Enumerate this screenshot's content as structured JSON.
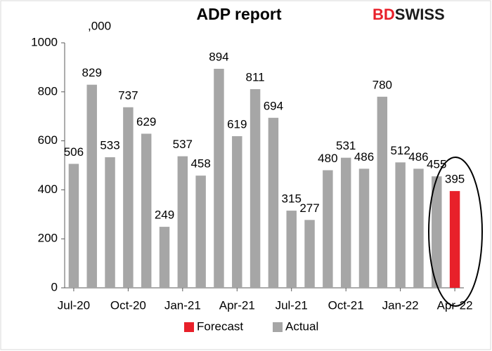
{
  "chart_data": {
    "type": "bar",
    "title": "ADP report",
    "annotation": ",000",
    "logo": [
      "BD",
      "SWISS"
    ],
    "categories": [
      "Jul-20",
      null,
      null,
      "Oct-20",
      null,
      null,
      "Jan-21",
      null,
      null,
      "Apr-21",
      null,
      null,
      "Jul-21",
      null,
      null,
      "Oct-21",
      null,
      null,
      "Jan-22",
      null,
      null,
      "Apr-22"
    ],
    "series": [
      {
        "name": "Forecast",
        "color": "#e8202a",
        "values": [
          null,
          null,
          null,
          null,
          null,
          null,
          null,
          null,
          null,
          null,
          null,
          null,
          null,
          null,
          null,
          null,
          null,
          null,
          null,
          null,
          null,
          395
        ]
      },
      {
        "name": "Actual",
        "color": "#a6a6a6",
        "values": [
          506,
          829,
          533,
          737,
          629,
          249,
          537,
          458,
          894,
          619,
          811,
          694,
          315,
          277,
          480,
          531,
          486,
          780,
          512,
          486,
          455,
          null
        ]
      }
    ],
    "ylim": [
      0,
      1000
    ],
    "yticks": [
      0,
      200,
      400,
      600,
      800,
      1000
    ],
    "grid": false
  }
}
